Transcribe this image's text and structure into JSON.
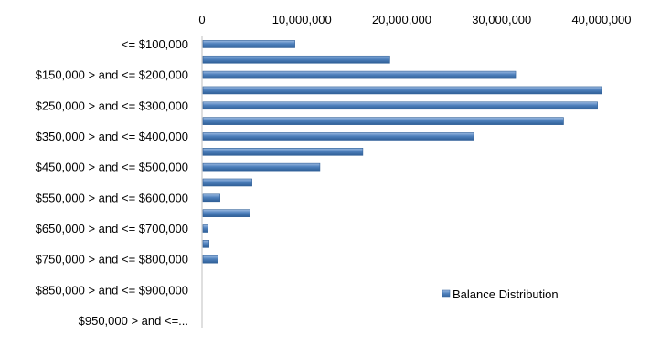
{
  "chart_data": {
    "type": "bar",
    "orientation": "horizontal",
    "title": "",
    "xlabel": "",
    "ylabel": "",
    "xlim": [
      0,
      40000000
    ],
    "x_ticks": [
      {
        "value": 0,
        "label": "0"
      },
      {
        "value": 10000000,
        "label": "10,000,000"
      },
      {
        "value": 20000000,
        "label": "20,000,000"
      },
      {
        "value": 30000000,
        "label": "30,000,000"
      },
      {
        "value": 40000000,
        "label": "40,000,000"
      }
    ],
    "categories": [
      "<= $100,000",
      "",
      "$150,000 > and <= $200,000",
      "",
      "$250,000 > and <= $300,000",
      "",
      "$350,000 > and <= $400,000",
      "",
      "$450,000 > and <= $500,000",
      "",
      "$550,000 > and <= $600,000",
      "",
      "$650,000 > and <= $700,000",
      "",
      "$750,000 > and <= $800,000",
      "",
      "$850,000 > and <= $900,000",
      "",
      "$950,000 > and <=..."
    ],
    "series": [
      {
        "name": "Balance Distribution",
        "color": "#4F81BD",
        "values": [
          9300000,
          18800000,
          31400000,
          40000000,
          39600000,
          36200000,
          27200000,
          16100000,
          11800000,
          5000000,
          1800000,
          4800000,
          600000,
          700000,
          1600000,
          0,
          0,
          0,
          0
        ]
      }
    ],
    "grid": false,
    "legend": {
      "position": "right",
      "entries": [
        "Balance Distribution"
      ]
    }
  }
}
